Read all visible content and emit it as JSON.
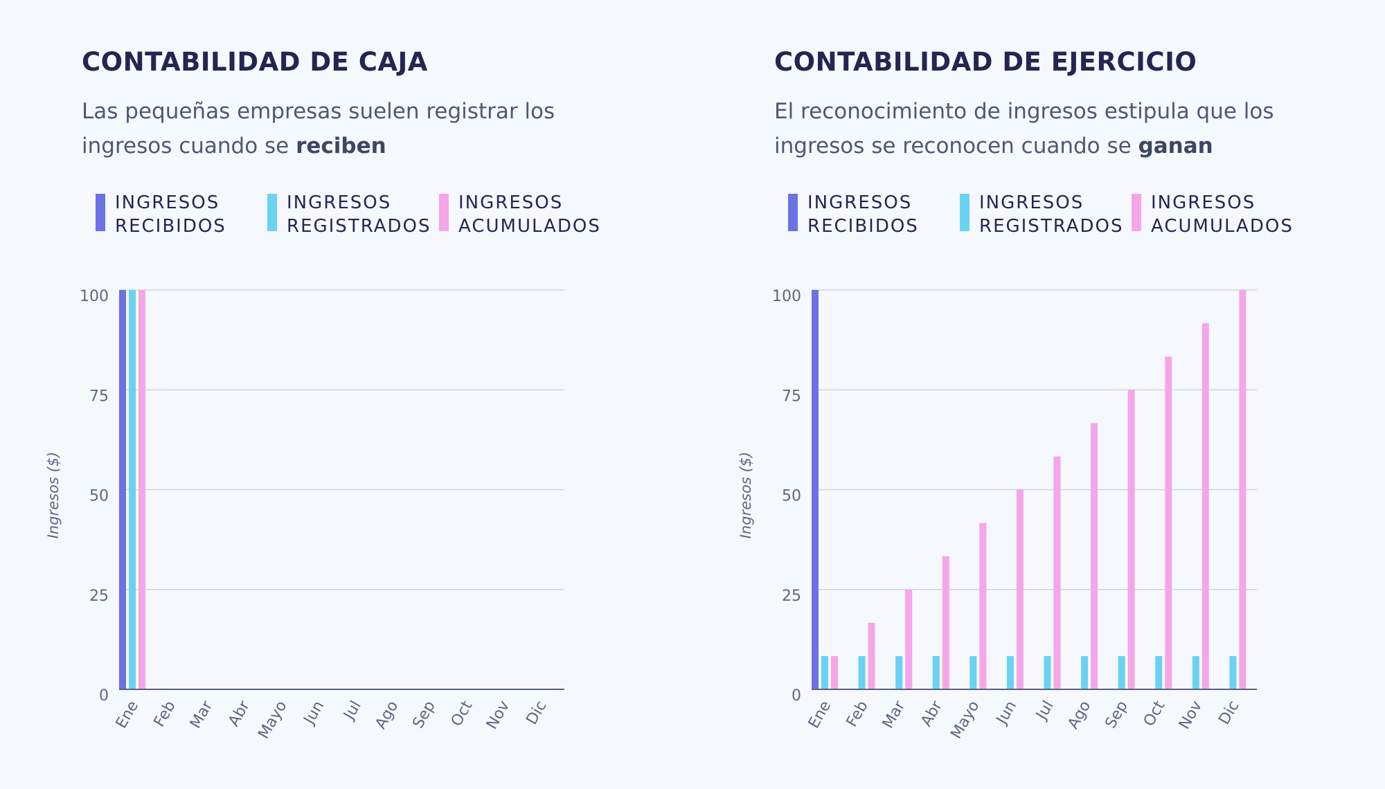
{
  "colors": {
    "recibidos": "#6b72e6",
    "registrados": "#6ad2f2",
    "acumulados": "#f4a6e8",
    "grid": "#cfd4df",
    "axis": "#5a6178",
    "tick": "#5f6780"
  },
  "legend": [
    {
      "line1": "INGRESOS",
      "line2": "RECIBIDOS",
      "color_key": "recibidos"
    },
    {
      "line1": "INGRESOS",
      "line2": "REGISTRADOS",
      "color_key": "registrados"
    },
    {
      "line1": "INGRESOS",
      "line2": "ACUMULADOS",
      "color_key": "acumulados"
    }
  ],
  "panels": [
    {
      "title": "CONTABILIDAD DE CAJA",
      "subtitle_pre": "Las pequeñas empresas suelen registrar los ingresos cuando se ",
      "subtitle_bold": "reciben"
    },
    {
      "title": "CONTABILIDAD DE EJERCICIO",
      "subtitle_pre": "El reconocimiento de ingresos estipula que los ingresos se reconocen cuando se ",
      "subtitle_bold": "ganan"
    }
  ],
  "chart_data": [
    {
      "type": "bar",
      "ylabel": "Ingresos ($)",
      "xlabel": "",
      "ylim": [
        0,
        100
      ],
      "yticks": [
        0,
        25,
        50,
        75,
        100
      ],
      "categories": [
        "Ene",
        "Feb",
        "Mar",
        "Abr",
        "Mayo",
        "Jun",
        "Jul",
        "Ago",
        "Sep",
        "Oct",
        "Nov",
        "Dic"
      ],
      "series": [
        {
          "name": "INGRESOS RECIBIDOS",
          "color_key": "recibidos",
          "values": [
            100,
            0,
            0,
            0,
            0,
            0,
            0,
            0,
            0,
            0,
            0,
            0
          ]
        },
        {
          "name": "INGRESOS REGISTRADOS",
          "color_key": "registrados",
          "values": [
            100,
            0,
            0,
            0,
            0,
            0,
            0,
            0,
            0,
            0,
            0,
            0
          ]
        },
        {
          "name": "INGRESOS ACUMULADOS",
          "color_key": "acumulados",
          "values": [
            100,
            0,
            0,
            0,
            0,
            0,
            0,
            0,
            0,
            0,
            0,
            0
          ]
        }
      ]
    },
    {
      "type": "bar",
      "ylabel": "Ingresos ($)",
      "xlabel": "",
      "ylim": [
        0,
        100
      ],
      "yticks": [
        0,
        25,
        50,
        75,
        100
      ],
      "categories": [
        "Ene",
        "Feb",
        "Mar",
        "Abr",
        "Mayo",
        "Jun",
        "Jul",
        "Ago",
        "Sep",
        "Oct",
        "Nov",
        "Dic"
      ],
      "series": [
        {
          "name": "INGRESOS RECIBIDOS",
          "color_key": "recibidos",
          "values": [
            100,
            0,
            0,
            0,
            0,
            0,
            0,
            0,
            0,
            0,
            0,
            0
          ]
        },
        {
          "name": "INGRESOS REGISTRADOS",
          "color_key": "registrados",
          "values": [
            8.33,
            8.33,
            8.33,
            8.33,
            8.33,
            8.33,
            8.33,
            8.33,
            8.33,
            8.33,
            8.33,
            8.33
          ]
        },
        {
          "name": "INGRESOS ACUMULADOS",
          "color_key": "acumulados",
          "values": [
            8.33,
            16.67,
            25,
            33.33,
            41.67,
            50,
            58.33,
            66.67,
            75,
            83.33,
            91.67,
            100
          ]
        }
      ]
    }
  ]
}
